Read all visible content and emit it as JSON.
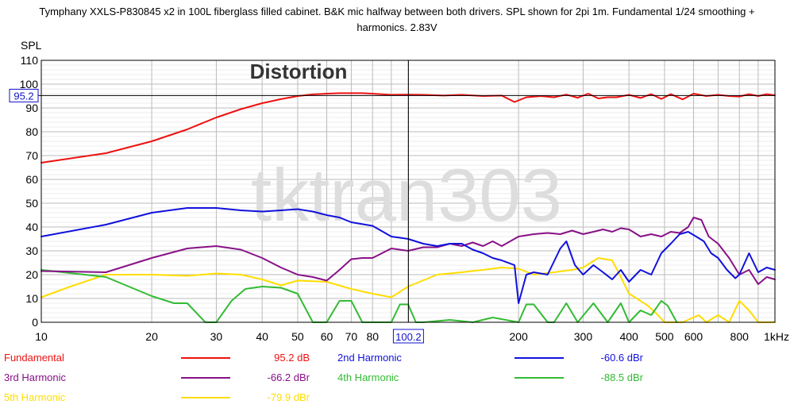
{
  "chart_data": {
    "type": "line",
    "title_lines": [
      "Tymphany XXLS-P830845 x2 in 100L fiberglass filled cabinet. B&K mic halfway between both drivers. SPL shown for 2pi 1m. Fundamental 1/24 smoothing +",
      "harmonics. 2.83V"
    ],
    "ylabel": "SPL",
    "watermark": "tktran303",
    "annotation": "Distortion",
    "x_scale": "log",
    "xlim": [
      10,
      1000
    ],
    "ylim": [
      0,
      110
    ],
    "grid": true,
    "x_ticks": [
      {
        "v": 10,
        "label": "10"
      },
      {
        "v": 20,
        "label": "20"
      },
      {
        "v": 30,
        "label": "30"
      },
      {
        "v": 40,
        "label": "40"
      },
      {
        "v": 50,
        "label": "50"
      },
      {
        "v": 60,
        "label": "60"
      },
      {
        "v": 70,
        "label": "70"
      },
      {
        "v": 80,
        "label": "80"
      },
      {
        "v": 200,
        "label": "200"
      },
      {
        "v": 300,
        "label": "300"
      },
      {
        "v": 400,
        "label": "400"
      },
      {
        "v": 500,
        "label": "500"
      },
      {
        "v": 600,
        "label": "600"
      },
      {
        "v": 800,
        "label": "800"
      },
      {
        "v": 1000,
        "label": "1kHz"
      }
    ],
    "y_ticks": [
      0,
      10,
      20,
      30,
      40,
      50,
      60,
      70,
      80,
      90,
      100,
      110
    ],
    "cursor": {
      "x": 100.2,
      "x_label": "100.2",
      "y": 95.2,
      "y_label": "95.2"
    },
    "legend_position": "bottom",
    "series": [
      {
        "name": "Fundamental",
        "value_label": "95.2 dB",
        "color": "#ee1111",
        "x": [
          10,
          15,
          20,
          25,
          30,
          35,
          40,
          45,
          50,
          55,
          60,
          65,
          70,
          75,
          80,
          90,
          100,
          110,
          125,
          140,
          160,
          180,
          195,
          210,
          230,
          250,
          270,
          290,
          310,
          330,
          350,
          370,
          400,
          430,
          460,
          490,
          520,
          560,
          600,
          650,
          700,
          750,
          800,
          850,
          900,
          950,
          1000
        ],
        "y": [
          67,
          71,
          76,
          81,
          86,
          89.5,
          92,
          93.7,
          95,
          95.7,
          96,
          96.2,
          96.2,
          96.2,
          96,
          95.5,
          95.6,
          95.5,
          95.2,
          95.5,
          95,
          95.2,
          92.5,
          94.5,
          95,
          94.5,
          95.6,
          94.3,
          96,
          94,
          94.5,
          94.5,
          95.5,
          94.2,
          95.8,
          93.8,
          95.8,
          93.6,
          96,
          95,
          95.5,
          95,
          94.8,
          95.8,
          95,
          95.8,
          95.3
        ]
      },
      {
        "name": "2nd Harmonic",
        "value_label": "-60.6 dBr",
        "color": "#1111dd",
        "x": [
          10,
          15,
          20,
          25,
          30,
          35,
          40,
          45,
          50,
          55,
          60,
          65,
          70,
          80,
          90,
          100,
          110,
          120,
          130,
          140,
          150,
          160,
          170,
          180,
          195,
          200,
          210,
          220,
          240,
          260,
          270,
          285,
          300,
          320,
          340,
          360,
          380,
          400,
          430,
          460,
          490,
          520,
          550,
          580,
          610,
          640,
          670,
          700,
          740,
          780,
          800,
          850,
          900,
          950,
          1000
        ],
        "y": [
          36,
          41,
          46,
          48,
          48,
          47,
          46.5,
          47,
          47.5,
          46.5,
          45,
          44,
          42,
          40.5,
          36,
          35,
          33,
          32,
          33,
          33,
          30.5,
          29,
          27,
          26,
          24,
          8,
          20,
          21,
          20,
          31,
          34,
          24,
          20,
          24,
          21,
          18,
          22,
          17,
          22,
          20,
          29,
          33,
          37,
          38,
          36,
          34,
          29,
          27,
          22,
          18.5,
          20,
          29,
          21,
          23,
          22
        ]
      },
      {
        "name": "3rd Harmonic",
        "value_label": "-66.2 dBr",
        "color": "#881188",
        "x": [
          10,
          15,
          20,
          25,
          30,
          35,
          40,
          45,
          50,
          55,
          60,
          65,
          70,
          75,
          80,
          90,
          100,
          110,
          120,
          130,
          140,
          150,
          160,
          170,
          180,
          200,
          220,
          240,
          260,
          280,
          300,
          320,
          340,
          360,
          380,
          400,
          430,
          460,
          490,
          520,
          550,
          580,
          600,
          630,
          660,
          700,
          750,
          800,
          850,
          900,
          950,
          1000
        ],
        "y": [
          21.5,
          21,
          27,
          31,
          32,
          30.5,
          27,
          23,
          20,
          19,
          17.5,
          22,
          26.5,
          27,
          27,
          31,
          30,
          31.5,
          31.5,
          33,
          32,
          33.5,
          32,
          34,
          32,
          36,
          37,
          37.5,
          37,
          38.5,
          37,
          38,
          39,
          38,
          39.5,
          39,
          36,
          37,
          36,
          38,
          37.5,
          40,
          44,
          43,
          36,
          33,
          27,
          20,
          22,
          16,
          19,
          18
        ]
      },
      {
        "name": "4th Harmonic",
        "value_label": "-88.5 dBr",
        "color": "#33bb33",
        "x": [
          10,
          15,
          20,
          23,
          25,
          28,
          30,
          33,
          36,
          40,
          45,
          50,
          55,
          60,
          65,
          70,
          75,
          80,
          90,
          95,
          100,
          105,
          110,
          130,
          150,
          170,
          200,
          210,
          220,
          240,
          250,
          270,
          290,
          320,
          350,
          380,
          400,
          430,
          460,
          490,
          510,
          540
        ],
        "y": [
          22,
          19,
          11,
          8,
          8,
          0,
          0,
          9,
          14,
          15,
          14.5,
          12,
          0,
          0,
          9,
          9,
          0,
          0,
          0,
          7.5,
          7.5,
          0,
          0,
          1,
          0,
          2,
          0,
          7.5,
          7.5,
          0,
          0,
          8,
          0,
          8,
          0,
          8,
          0,
          5,
          3,
          9,
          7,
          0
        ]
      },
      {
        "name": "5th Harmonic",
        "value_label": "-79.9 dBr",
        "color": "#ffdd00",
        "x": [
          10,
          12,
          15,
          20,
          25,
          30,
          35,
          40,
          45,
          50,
          60,
          70,
          80,
          90,
          100,
          120,
          140,
          160,
          180,
          200,
          220,
          250,
          280,
          300,
          330,
          360,
          380,
          400,
          420,
          450,
          480,
          500,
          560,
          620,
          650,
          700,
          750,
          800,
          850,
          900,
          950,
          1000
        ],
        "y": [
          10.5,
          15,
          20,
          20,
          19.5,
          20.5,
          20,
          18,
          15.5,
          17.5,
          17,
          14,
          12,
          10.5,
          15,
          20,
          21,
          22,
          23,
          22.5,
          20,
          21,
          22,
          23,
          27,
          26,
          19,
          12,
          10,
          7,
          3,
          0,
          0,
          3,
          0,
          3,
          0,
          9,
          5,
          0,
          0,
          0
        ]
      }
    ]
  }
}
